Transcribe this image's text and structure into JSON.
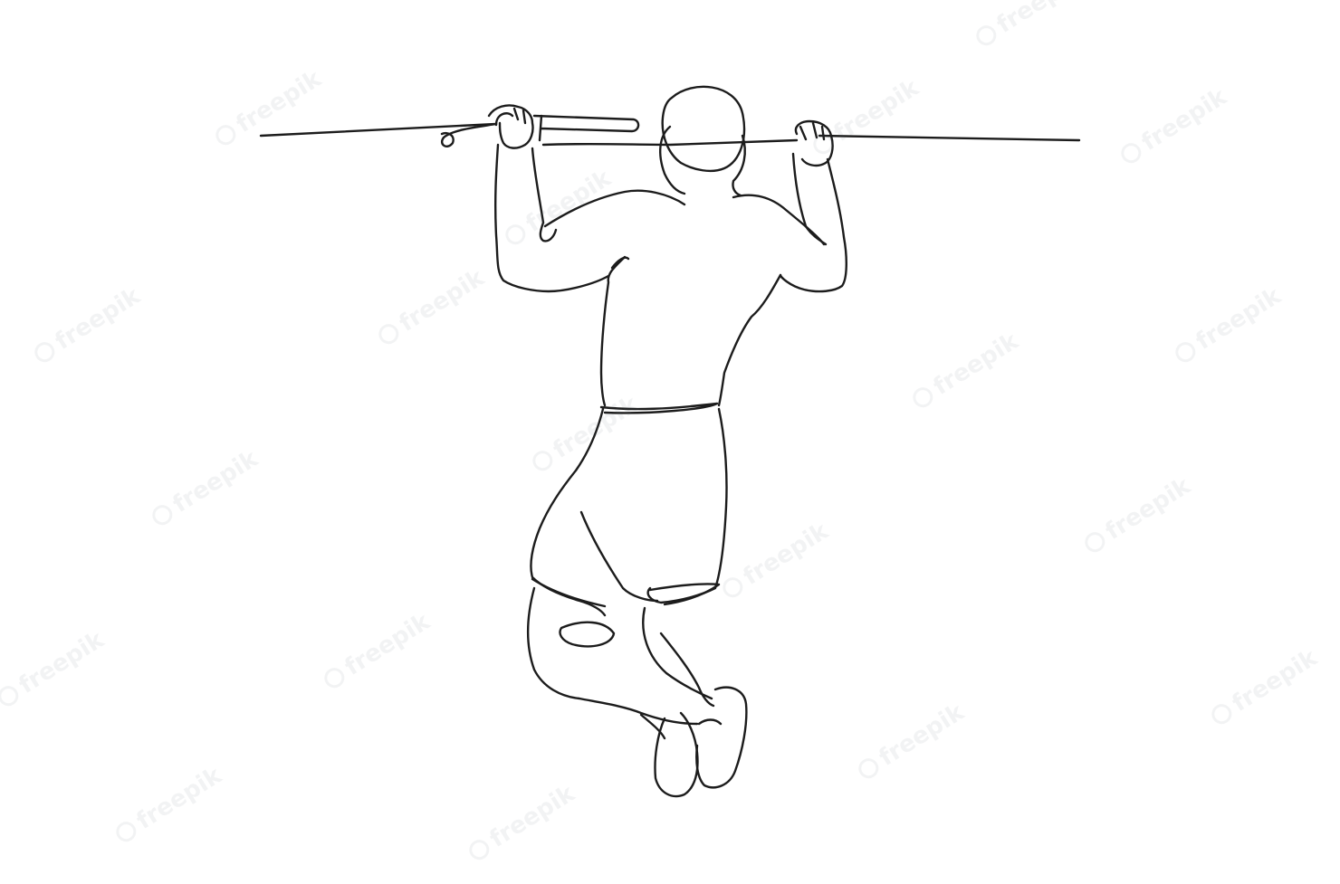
{
  "image": {
    "subject": "continuous-line-drawing-pullup",
    "background": "#ffffff",
    "line_color": "#1c1c1c"
  },
  "watermark": {
    "text": "freepik",
    "icon": "freepik-logo-icon",
    "color": "#5a6470"
  }
}
